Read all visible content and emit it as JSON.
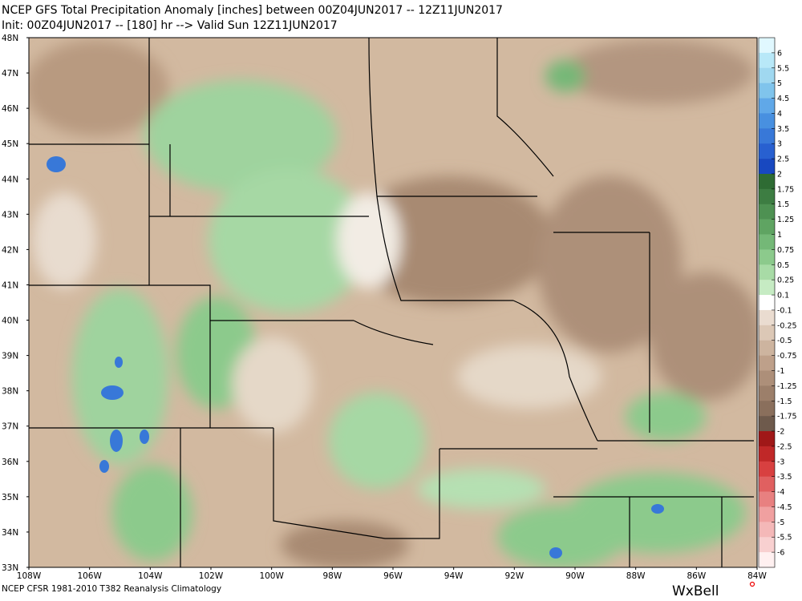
{
  "header": {
    "line1": "NCEP GFS Total Precipitation Anomaly [inches] between 00Z04JUN2017 -- 12Z11JUN2017",
    "line2": "Init: 00Z04JUN2017 -- [180] hr --> Valid Sun 12Z11JUN2017"
  },
  "map": {
    "lat_labels": [
      "48N",
      "47N",
      "46N",
      "45N",
      "44N",
      "43N",
      "42N",
      "41N",
      "40N",
      "39N",
      "38N",
      "37N",
      "36N",
      "35N",
      "34N",
      "33N"
    ],
    "lon_labels": [
      "108W",
      "106W",
      "104W",
      "102W",
      "100W",
      "98W",
      "96W",
      "94W",
      "92W",
      "90W",
      "88W",
      "86W",
      "84W"
    ]
  },
  "colorbar": {
    "labels": [
      "6",
      "5.5",
      "5",
      "4.5",
      "4",
      "3.5",
      "3",
      "2.5",
      "2",
      "1.75",
      "1.5",
      "1.25",
      "1",
      "0.75",
      "0.5",
      "0.25",
      "0.1",
      "-0.1",
      "-0.25",
      "-0.5",
      "-0.75",
      "-1",
      "-1.25",
      "-1.5",
      "-1.75",
      "-2",
      "-2.5",
      "-3",
      "-3.5",
      "-4",
      "-4.5",
      "-5",
      "-5.5",
      "-6"
    ]
  },
  "footer": {
    "text": "NCEP CFSR 1981-2010 T382 Reanalysis Climatology",
    "logo": "WxBell"
  }
}
